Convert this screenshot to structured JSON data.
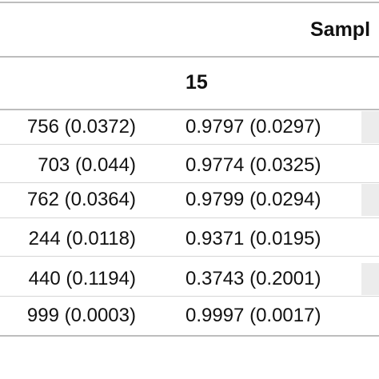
{
  "table": {
    "group_header": "Sampl",
    "column_header": "15",
    "rows": [
      {
        "col1": "756 (0.0372)",
        "col2": "0.9797 (0.0297)"
      },
      {
        "col1": "703 (0.044)",
        "col2": "0.9774 (0.0325)"
      },
      {
        "col1": "762 (0.0364)",
        "col2": "0.9799 (0.0294)"
      },
      {
        "col1": "244 (0.0118)",
        "col2": "0.9371 (0.0195)"
      },
      {
        "col1": "440 (0.1194)",
        "col2": "0.3743 (0.2001)"
      },
      {
        "col1": "999 (0.0003)",
        "col2": "0.9997 (0.0017)"
      }
    ]
  }
}
